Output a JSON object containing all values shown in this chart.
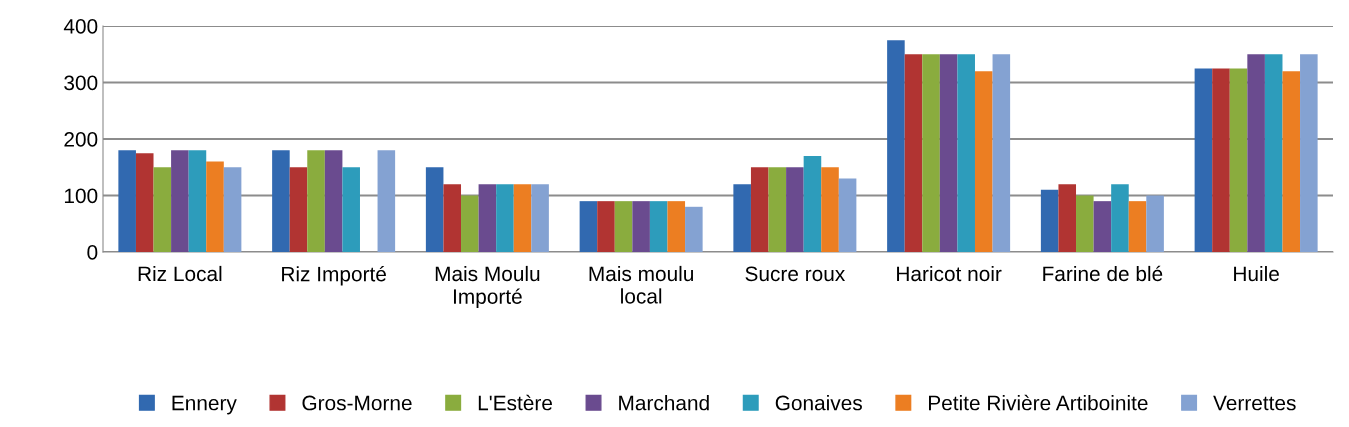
{
  "chart_data": {
    "type": "bar",
    "categories": [
      "Riz Local",
      "Riz Importé",
      "Mais Moulu\nImporté",
      "Mais moulu\nlocal",
      "Sucre roux",
      "Haricot noir",
      "Farine de blé",
      "Huile"
    ],
    "series": [
      {
        "name": "Ennery",
        "color": "#3169b0",
        "values": [
          180,
          180,
          150,
          90,
          120,
          375,
          110,
          325
        ]
      },
      {
        "name": "Gros-Morne",
        "color": "#b13432",
        "values": [
          175,
          150,
          120,
          90,
          150,
          350,
          120,
          325
        ]
      },
      {
        "name": "L'Estère",
        "color": "#8aac3e",
        "values": [
          150,
          180,
          100,
          90,
          150,
          350,
          100,
          325
        ]
      },
      {
        "name": "Marchand",
        "color": "#6a4b8f",
        "values": [
          180,
          180,
          120,
          90,
          150,
          350,
          90,
          350
        ]
      },
      {
        "name": "Gonaives",
        "color": "#2d9cbb",
        "values": [
          180,
          150,
          120,
          90,
          170,
          350,
          120,
          350
        ]
      },
      {
        "name": "Petite Rivière Artiboinite",
        "color": "#ec7e22",
        "values": [
          160,
          null,
          120,
          90,
          150,
          320,
          90,
          320
        ]
      },
      {
        "name": "Verrettes",
        "color": "#84a2d2",
        "values": [
          150,
          180,
          120,
          80,
          130,
          350,
          100,
          350
        ]
      }
    ],
    "ylim": [
      0,
      400
    ],
    "yticks": [
      0,
      100,
      200,
      300,
      400
    ],
    "grid": "y",
    "legend": "bottom"
  }
}
